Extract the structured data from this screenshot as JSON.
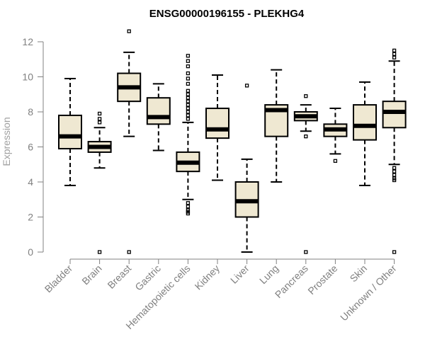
{
  "chart_data": {
    "type": "boxplot",
    "title": "ENSG00000196155 - PLEKHG4",
    "xlabel": "",
    "ylabel": "Expression",
    "ylim": [
      0,
      12
    ],
    "yticks": [
      0,
      2,
      4,
      6,
      8,
      10,
      12
    ],
    "box_fill": "#efe8d2",
    "outline_color": "#000000",
    "axis_color": "#808080",
    "categories": [
      "Bladder",
      "Brain",
      "Breast",
      "Gastric",
      "Hematopoietic cells",
      "Kidney",
      "Liver",
      "Lung",
      "Pancreas",
      "Prostate",
      "Skin",
      "Unknown / Other"
    ],
    "boxes": [
      {
        "name": "Bladder",
        "whisker_low": 3.8,
        "q1": 5.9,
        "median": 6.6,
        "q3": 7.8,
        "whisker_high": 9.9,
        "outliers": []
      },
      {
        "name": "Brain",
        "whisker_low": 4.8,
        "q1": 5.7,
        "median": 6.0,
        "q3": 6.3,
        "whisker_high": 7.1,
        "outliers": [
          7.6,
          7.9,
          7.4,
          0.0
        ]
      },
      {
        "name": "Breast",
        "whisker_low": 6.6,
        "q1": 8.6,
        "median": 9.4,
        "q3": 10.2,
        "whisker_high": 11.4,
        "outliers": [
          12.6,
          0.0
        ]
      },
      {
        "name": "Gastric",
        "whisker_low": 5.8,
        "q1": 7.3,
        "median": 7.7,
        "q3": 8.8,
        "whisker_high": 9.6,
        "outliers": []
      },
      {
        "name": "Hematopoietic cells",
        "whisker_low": 3.0,
        "q1": 4.6,
        "median": 5.1,
        "q3": 5.7,
        "whisker_high": 7.4,
        "outliers": [
          7.6,
          7.8,
          8.0,
          8.2,
          8.4,
          8.6,
          8.8,
          9.0,
          9.2,
          9.6,
          9.9,
          10.2,
          10.6,
          10.9,
          11.2,
          2.8,
          2.6,
          2.4,
          2.3,
          2.2
        ]
      },
      {
        "name": "Kidney",
        "whisker_low": 4.1,
        "q1": 6.5,
        "median": 7.0,
        "q3": 8.2,
        "whisker_high": 10.1,
        "outliers": []
      },
      {
        "name": "Liver",
        "whisker_low": 0.0,
        "q1": 2.0,
        "median": 2.9,
        "q3": 4.0,
        "whisker_high": 5.3,
        "outliers": [
          9.5
        ]
      },
      {
        "name": "Lung",
        "whisker_low": 4.0,
        "q1": 6.6,
        "median": 8.1,
        "q3": 8.4,
        "whisker_high": 10.4,
        "outliers": []
      },
      {
        "name": "Pancreas",
        "whisker_low": 6.9,
        "q1": 7.5,
        "median": 7.75,
        "q3": 8.0,
        "whisker_high": 8.4,
        "outliers": [
          8.9,
          6.6,
          0.0
        ]
      },
      {
        "name": "Prostate",
        "whisker_low": 5.6,
        "q1": 6.6,
        "median": 7.0,
        "q3": 7.3,
        "whisker_high": 8.2,
        "outliers": [
          5.2
        ]
      },
      {
        "name": "Skin",
        "whisker_low": 3.8,
        "q1": 6.4,
        "median": 7.2,
        "q3": 8.4,
        "whisker_high": 9.7,
        "outliers": []
      },
      {
        "name": "Unknown / Other",
        "whisker_low": 5.0,
        "q1": 7.1,
        "median": 8.0,
        "q3": 8.6,
        "whisker_high": 10.9,
        "outliers": [
          11.5,
          11.3,
          11.1,
          4.8,
          4.6,
          4.4,
          4.2,
          4.1,
          0.0
        ]
      }
    ]
  }
}
